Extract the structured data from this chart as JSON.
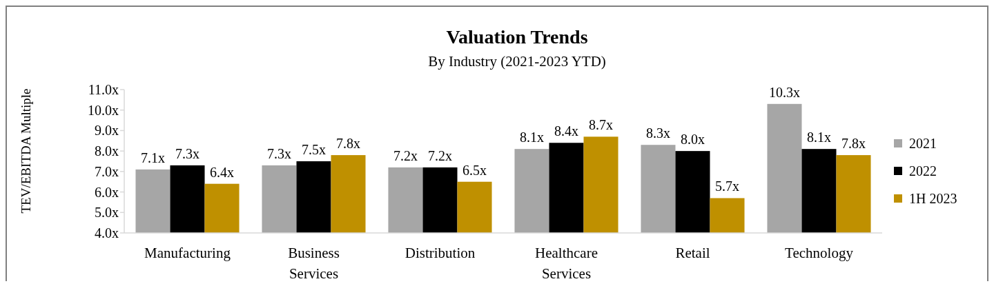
{
  "chart_data": {
    "type": "bar",
    "title": "Valuation Trends",
    "subtitle": "By Industry (2021-2023 YTD)",
    "ylabel": "TEV/EBITDA Multiple",
    "categories": [
      "Manufacturing",
      "Business Services",
      "Distribution",
      "Healthcare Services",
      "Retail",
      "Technology"
    ],
    "series": [
      {
        "name": "2021",
        "color": "#a6a6a6",
        "values": [
          7.1,
          7.3,
          7.2,
          8.1,
          8.3,
          10.3
        ],
        "value_labels": [
          "7.1x",
          "7.3x",
          "7.2x",
          "8.1x",
          "8.3x",
          "10.3x"
        ]
      },
      {
        "name": "2022",
        "color": "#000000",
        "values": [
          7.3,
          7.5,
          7.2,
          8.4,
          8.0,
          8.1
        ],
        "value_labels": [
          "7.3x",
          "7.5x",
          "7.2x",
          "8.4x",
          "8.0x",
          "8.1x"
        ]
      },
      {
        "name": "1H 2023",
        "color": "#bf9000",
        "values": [
          6.4,
          7.8,
          6.5,
          8.7,
          5.7,
          7.8
        ],
        "value_labels": [
          "6.4x",
          "7.8x",
          "6.5x",
          "8.7x",
          "5.7x",
          "7.8x"
        ]
      }
    ],
    "ylim": [
      4,
      11
    ],
    "yticks": [
      {
        "value": 4,
        "label": "4.0x"
      },
      {
        "value": 5,
        "label": "5.0x"
      },
      {
        "value": 6,
        "label": "6.0x"
      },
      {
        "value": 7,
        "label": "7.0x"
      },
      {
        "value": 8,
        "label": "8.0x"
      },
      {
        "value": 9,
        "label": "9.0x"
      },
      {
        "value": 10,
        "label": "10.0x"
      },
      {
        "value": 11,
        "label": "11.0x"
      }
    ],
    "grid": false,
    "legend": "right"
  }
}
